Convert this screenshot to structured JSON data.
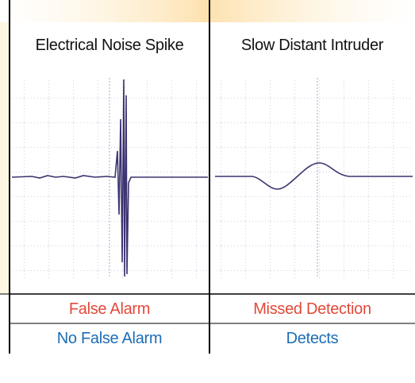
{
  "table": {
    "header": [
      "Electrical Noise Spike",
      "Slow Distant Intruder"
    ],
    "rows": [
      [
        "False Alarm",
        "Missed Detection"
      ],
      [
        "No False Alarm",
        "Detects"
      ]
    ]
  }
}
